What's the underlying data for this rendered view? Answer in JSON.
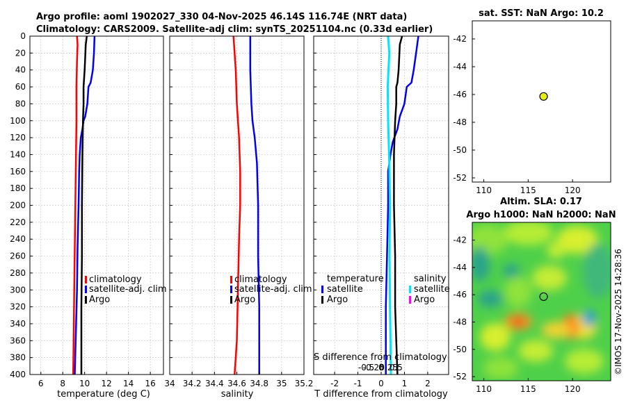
{
  "title": {
    "line1": "Argo profile: aoml 1902027_330 04-Nov-2025 46.14S 116.74E (NRT data)",
    "line2": "Climatology: CARS2009. Satellite-adj clim: synTS_20251104.nc (0.33d earlier)"
  },
  "watermark": "©IMOS 17-Nov-2025 14:28:36",
  "colors": {
    "climatology": "#ff0000",
    "satellite": "#0000ee",
    "argo": "#000000",
    "sal_sat": "#00e5ff",
    "sal_argo": "#ff00ff",
    "marker": "#e6ee16"
  },
  "depth_ticks": [
    0,
    20,
    40,
    60,
    80,
    100,
    120,
    140,
    160,
    180,
    200,
    220,
    240,
    260,
    280,
    300,
    320,
    340,
    360,
    380,
    400
  ],
  "chart_data": [
    {
      "id": "temperature",
      "type": "line",
      "xlabel": "temperature (deg C)",
      "ylabel": "",
      "xlim": [
        5,
        17.2
      ],
      "ylim": [
        0,
        400
      ],
      "y_reversed": true,
      "xticks": [
        "6",
        "8",
        "10",
        "12",
        "14",
        "16"
      ],
      "xtick_values": [
        6,
        8,
        10,
        12,
        14,
        16
      ],
      "legend": [
        "climatology",
        "satellite-adj. clim",
        "Argo"
      ],
      "series": [
        {
          "name": "climatology",
          "points": [
            [
              9.3,
              0
            ],
            [
              9.35,
              10
            ],
            [
              9.3,
              30
            ],
            [
              9.25,
              60
            ],
            [
              9.25,
              100
            ],
            [
              9.2,
              150
            ],
            [
              9.15,
              200
            ],
            [
              9.1,
              250
            ],
            [
              9.05,
              300
            ],
            [
              9.0,
              350
            ],
            [
              8.95,
              400
            ]
          ]
        },
        {
          "name": "satellite-adj. clim",
          "points": [
            [
              10.9,
              0
            ],
            [
              10.85,
              20
            ],
            [
              10.75,
              40
            ],
            [
              10.55,
              55
            ],
            [
              10.35,
              60
            ],
            [
              10.3,
              70
            ],
            [
              10.25,
              80
            ],
            [
              10.05,
              95
            ],
            [
              9.9,
              100
            ],
            [
              9.8,
              110
            ],
            [
              9.65,
              120
            ],
            [
              9.55,
              140
            ],
            [
              9.5,
              160
            ],
            [
              9.45,
              200
            ],
            [
              9.35,
              250
            ],
            [
              9.3,
              300
            ],
            [
              9.2,
              350
            ],
            [
              9.1,
              400
            ]
          ]
        },
        {
          "name": "Argo",
          "points": [
            [
              10.2,
              0
            ],
            [
              10.1,
              10
            ],
            [
              10.0,
              40
            ],
            [
              9.95,
              50
            ],
            [
              9.9,
              60
            ],
            [
              9.9,
              80
            ],
            [
              9.85,
              100
            ],
            [
              9.8,
              140
            ],
            [
              9.75,
              200
            ],
            [
              9.75,
              260
            ],
            [
              9.7,
              320
            ],
            [
              9.7,
              400
            ]
          ]
        }
      ]
    },
    {
      "id": "salinity",
      "type": "line",
      "xlabel": "salinity",
      "ylabel": "",
      "xlim": [
        34,
        35.2
      ],
      "ylim": [
        0,
        400
      ],
      "y_reversed": true,
      "xticks": [
        "34",
        "34.2",
        "34.4",
        "34.6",
        "34.8",
        "35",
        "35.2"
      ],
      "xtick_values": [
        34,
        34.2,
        34.4,
        34.6,
        34.8,
        35,
        35.2
      ],
      "legend": [
        "climatology",
        "satellite-adj. clim",
        "Argo"
      ],
      "series": [
        {
          "name": "climatology",
          "points": [
            [
              34.57,
              0
            ],
            [
              34.59,
              40
            ],
            [
              34.6,
              80
            ],
            [
              34.62,
              120
            ],
            [
              34.63,
              160
            ],
            [
              34.63,
              200
            ],
            [
              34.62,
              240
            ],
            [
              34.61,
              300
            ],
            [
              34.6,
              360
            ],
            [
              34.58,
              400
            ]
          ]
        },
        {
          "name": "satellite-adj. clim",
          "points": [
            [
              34.72,
              0
            ],
            [
              34.72,
              40
            ],
            [
              34.73,
              80
            ],
            [
              34.74,
              100
            ],
            [
              34.76,
              120
            ],
            [
              34.78,
              150
            ],
            [
              34.79,
              200
            ],
            [
              34.79,
              260
            ],
            [
              34.8,
              320
            ],
            [
              34.8,
              400
            ]
          ]
        }
      ]
    },
    {
      "id": "difference",
      "type": "line",
      "xlabel": "T difference from climatology",
      "xlabel2": "S difference from climatology",
      "xlim": [
        -2.9,
        2.9
      ],
      "ylim": [
        0,
        400
      ],
      "y_reversed": true,
      "xticks": [
        "-2",
        "-1",
        "0",
        "1",
        "2"
      ],
      "xtick_values": [
        -2,
        -1,
        0,
        1,
        2
      ],
      "xticks2": [
        "-0.5",
        "-0.25",
        "0",
        "0.25",
        "0.5"
      ],
      "legend_temperature": {
        "title": "temperature",
        "items": [
          "satellite",
          "Argo"
        ]
      },
      "legend_salinity": {
        "title": "salinity",
        "items": [
          "satellite",
          "Argo"
        ]
      },
      "series": [
        {
          "name": "T satellite",
          "points": [
            [
              1.6,
              0
            ],
            [
              1.5,
              20
            ],
            [
              1.4,
              40
            ],
            [
              1.3,
              55
            ],
            [
              1.1,
              60
            ],
            [
              1.0,
              80
            ],
            [
              0.8,
              95
            ],
            [
              0.7,
              110
            ],
            [
              0.5,
              125
            ],
            [
              0.4,
              140
            ],
            [
              0.3,
              160
            ],
            [
              0.3,
              200
            ],
            [
              0.25,
              260
            ],
            [
              0.2,
              320
            ],
            [
              0.2,
              400
            ]
          ]
        },
        {
          "name": "T Argo",
          "points": [
            [
              0.9,
              0
            ],
            [
              0.8,
              10
            ],
            [
              0.75,
              40
            ],
            [
              0.7,
              55
            ],
            [
              0.65,
              60
            ],
            [
              0.65,
              80
            ],
            [
              0.6,
              100
            ],
            [
              0.55,
              140
            ],
            [
              0.55,
              200
            ],
            [
              0.6,
              260
            ],
            [
              0.6,
              320
            ],
            [
              0.65,
              360
            ],
            [
              0.7,
              400
            ]
          ]
        },
        {
          "name": "S satellite",
          "points": [
            [
              0.3,
              0
            ],
            [
              0.35,
              20
            ],
            [
              0.28,
              60
            ],
            [
              0.3,
              100
            ],
            [
              0.35,
              150
            ],
            [
              0.38,
              200
            ],
            [
              0.36,
              260
            ],
            [
              0.38,
              320
            ],
            [
              0.4,
              360
            ],
            [
              0.42,
              400
            ]
          ]
        }
      ]
    },
    {
      "id": "sst_map",
      "type": "scatter",
      "title": "sat. SST: NaN Argo: 10.2",
      "xlim": [
        108.7,
        124.3
      ],
      "ylim": [
        -52.3,
        -40.7
      ],
      "xticks": [
        "110",
        "115",
        "120"
      ],
      "xtick_values": [
        110,
        115,
        120
      ],
      "yticks": [
        "-42",
        "-44",
        "-46",
        "-48",
        "-50",
        "-52"
      ],
      "ytick_values": [
        -42,
        -44,
        -46,
        -48,
        -50,
        -52
      ],
      "point": {
        "lon": 116.74,
        "lat": -46.14
      }
    },
    {
      "id": "sla_map",
      "type": "heatmap",
      "title1": "Altim. SLA: 0.17",
      "title2": "Argo h1000: NaN h2000: NaN",
      "xlim": [
        108.7,
        124.3
      ],
      "ylim": [
        -52.3,
        -40.7
      ],
      "xticks": [
        "110",
        "115",
        "120"
      ],
      "xtick_values": [
        110,
        115,
        120
      ],
      "yticks": [
        "-42",
        "-44",
        "-46",
        "-48",
        "-50",
        "-52"
      ],
      "ytick_values": [
        -42,
        -44,
        -46,
        -48,
        -50,
        -52
      ],
      "point": {
        "lon": 116.74,
        "lat": -46.14
      }
    }
  ]
}
